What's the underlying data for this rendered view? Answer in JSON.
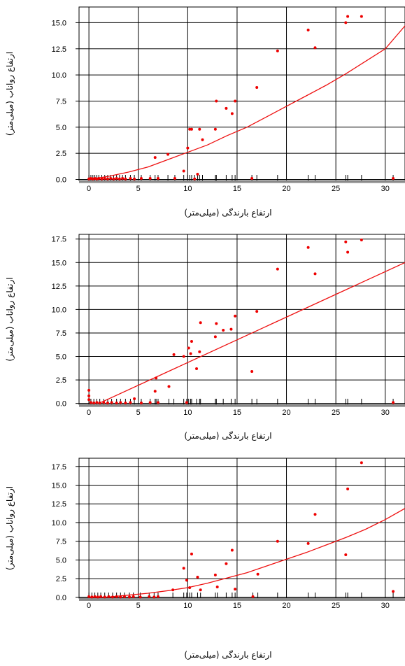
{
  "chart_data": [
    {
      "type": "scatter",
      "xlabel": "ارتفاع بارندگی (میلی‌متر)",
      "ylabel": "ارتفاع رواناب (میلی‌متر)",
      "xlim": [
        -1,
        32
      ],
      "ylim": [
        -0.1,
        16.5
      ],
      "xticks": [
        "0",
        "5",
        "10",
        "15",
        "20",
        "25",
        "30"
      ],
      "yticks": [
        "0.0",
        "2.5",
        "5.0",
        "7.5",
        "10.0",
        "12.5",
        "15.0"
      ],
      "ytick_values": [
        0,
        2.5,
        5,
        7.5,
        10,
        12.5,
        15
      ],
      "grid": true,
      "points": {
        "x": [
          0,
          0.2,
          0.4,
          0.6,
          0.8,
          1.0,
          1.3,
          1.6,
          1.9,
          2.2,
          2.5,
          2.8,
          3.1,
          3.4,
          3.7,
          4.2,
          4.6,
          5.3,
          6.2,
          6.7,
          7.0,
          8.0,
          8.7,
          9.6,
          10.0,
          10.2,
          10.4,
          10.7,
          11.0,
          11.2,
          11.5,
          12.8,
          12.9,
          13.9,
          14.5,
          14.8,
          17.0,
          19.1,
          22.2,
          22.9,
          26.0,
          26.2,
          27.6,
          16.5,
          30.8
        ],
        "y": [
          0.05,
          0.1,
          0.05,
          0.1,
          0.05,
          0.1,
          0.05,
          0.1,
          0.05,
          0.1,
          0.05,
          0.1,
          0.05,
          0.1,
          0.05,
          0.1,
          0.05,
          0.1,
          0.1,
          2.1,
          0.1,
          2.4,
          0.1,
          0.8,
          3.0,
          4.8,
          4.8,
          0.05,
          0.5,
          4.8,
          3.8,
          4.8,
          7.5,
          6.8,
          6.3,
          7.5,
          8.8,
          12.3,
          14.3,
          12.6,
          15.0,
          15.6,
          15.6,
          0.1,
          0.1
        ]
      },
      "curve": {
        "x": [
          0,
          2,
          4,
          6,
          8,
          10,
          12,
          14,
          16,
          18,
          20,
          22,
          24,
          26,
          28,
          30,
          32
        ],
        "y": [
          0,
          0.3,
          0.7,
          1.2,
          1.9,
          2.6,
          3.3,
          4.2,
          5.0,
          6.0,
          7.0,
          8.0,
          9.0,
          10.1,
          11.3,
          12.5,
          14.7
        ]
      },
      "rug": [
        0,
        0.2,
        0.4,
        0.6,
        0.8,
        1.0,
        1.3,
        1.6,
        1.9,
        2.2,
        2.5,
        2.8,
        3.1,
        3.4,
        3.7,
        4.2,
        4.6,
        5.3,
        6.2,
        6.7,
        7.0,
        8.0,
        8.7,
        9.6,
        10.0,
        10.2,
        10.4,
        10.7,
        11.0,
        11.2,
        11.5,
        12.8,
        12.9,
        13.9,
        14.5,
        14.8,
        16.5,
        17.0,
        19.1,
        22.2,
        22.9,
        26.0,
        26.2,
        27.6,
        30.8
      ]
    },
    {
      "type": "scatter",
      "xlabel": "ارتفاع بارندگی (میلی‌متر)",
      "ylabel": "ارتفاع رواناب (میلی‌متر)",
      "xlim": [
        -1,
        32
      ],
      "ylim": [
        -0.1,
        18
      ],
      "xticks": [
        "0",
        "5",
        "10",
        "15",
        "20",
        "25",
        "30"
      ],
      "yticks": [
        "0.0",
        "2.5",
        "5.0",
        "7.5",
        "10.0",
        "12.5",
        "15.0",
        "17.5"
      ],
      "ytick_values": [
        0,
        2.5,
        5,
        7.5,
        10,
        12.5,
        15,
        17.5
      ],
      "grid": true,
      "points": {
        "x": [
          0,
          0,
          0,
          0.2,
          0.5,
          0.8,
          1.1,
          1.5,
          1.9,
          2.3,
          2.8,
          3.2,
          3.7,
          4.2,
          4.6,
          5.3,
          6.2,
          6.7,
          6.8,
          7.0,
          8.1,
          8.6,
          9.6,
          9.9,
          10.1,
          10.3,
          10.4,
          10.9,
          11.2,
          11.3,
          12.8,
          12.9,
          13.6,
          14.4,
          14.8,
          16.5,
          17.0,
          19.1,
          22.2,
          22.9,
          26.0,
          26.2,
          27.6,
          30.8
        ],
        "y": [
          1.4,
          0.8,
          0.4,
          0.1,
          0.05,
          0.1,
          0.05,
          0.1,
          0.05,
          0.1,
          0.05,
          0.1,
          0.05,
          0.1,
          0.5,
          0.05,
          0.1,
          1.3,
          2.7,
          0.1,
          1.8,
          5.2,
          5.0,
          0.1,
          5.9,
          5.3,
          6.6,
          3.7,
          5.5,
          8.6,
          7.1,
          8.5,
          7.8,
          7.9,
          9.3,
          3.4,
          9.8,
          14.3,
          16.6,
          13.8,
          17.2,
          16.1,
          17.4,
          0.1
        ]
      },
      "curve": {
        "x": [
          1,
          32
        ],
        "y": [
          0,
          15.0
        ]
      },
      "rug": [
        0,
        0.2,
        0.5,
        0.8,
        1.1,
        1.5,
        1.9,
        2.3,
        2.8,
        3.2,
        3.7,
        4.2,
        4.6,
        5.3,
        6.2,
        6.7,
        6.8,
        7.0,
        8.1,
        8.6,
        9.6,
        9.9,
        10.1,
        10.3,
        10.4,
        10.9,
        11.2,
        11.3,
        12.8,
        12.9,
        13.6,
        14.4,
        14.8,
        16.5,
        17.0,
        19.1,
        22.2,
        22.9,
        26.0,
        26.2,
        27.6,
        30.8
      ]
    },
    {
      "type": "scatter",
      "xlabel": "ارتفاع بارندگی (میلی‌متر)",
      "ylabel": "ارتفاع رواناب (میلی‌متر)",
      "xlim": [
        -1,
        32
      ],
      "ylim": [
        -0.1,
        18.6
      ],
      "xticks": [
        "0",
        "5",
        "10",
        "15",
        "20",
        "25",
        "30"
      ],
      "yticks": [
        "0.0",
        "2.5",
        "5.0",
        "7.5",
        "10.0",
        "12.5",
        "15.0",
        "17.5"
      ],
      "ytick_values": [
        0,
        2.5,
        5,
        7.5,
        10,
        12.5,
        15,
        17.5
      ],
      "grid": true,
      "points": {
        "x": [
          0,
          0.3,
          0.6,
          0.9,
          1.2,
          1.6,
          2.0,
          2.4,
          2.8,
          3.2,
          3.6,
          4.1,
          4.5,
          5.2,
          6.1,
          6.6,
          7.0,
          8.5,
          9.6,
          9.9,
          10.2,
          10.4,
          11.0,
          11.3,
          12.8,
          13.0,
          13.9,
          14.5,
          14.8,
          16.6,
          17.1,
          19.1,
          22.2,
          22.9,
          26.0,
          26.2,
          27.6,
          30.8
        ],
        "y": [
          0.1,
          0.05,
          0.1,
          0.05,
          0.1,
          0.05,
          0.1,
          0.05,
          0.1,
          0.05,
          0.1,
          0.05,
          0.1,
          0.05,
          0.1,
          0.05,
          0.1,
          1.0,
          3.9,
          2.3,
          1.3,
          5.8,
          2.7,
          1.0,
          3.0,
          1.4,
          4.5,
          6.3,
          1.1,
          0.1,
          3.1,
          7.5,
          7.2,
          11.1,
          5.7,
          14.5,
          18.0,
          0.8
        ]
      },
      "curve": {
        "x": [
          0,
          2,
          4,
          6,
          8,
          10,
          12,
          14,
          16,
          18,
          20,
          22,
          24,
          26,
          28,
          30,
          32
        ],
        "y": [
          0,
          0.05,
          0.3,
          0.55,
          0.9,
          1.3,
          1.9,
          2.6,
          3.3,
          4.2,
          5.1,
          6.0,
          7.0,
          8.0,
          9.1,
          10.4,
          11.9
        ]
      },
      "rug": [
        0,
        0.3,
        0.6,
        0.9,
        1.2,
        1.6,
        2.0,
        2.4,
        2.8,
        3.2,
        3.6,
        4.1,
        4.5,
        5.2,
        6.1,
        6.6,
        7.0,
        8.5,
        9.6,
        9.9,
        10.2,
        10.4,
        11.0,
        11.3,
        12.8,
        13.0,
        13.9,
        14.5,
        14.8,
        16.6,
        17.1,
        19.1,
        22.2,
        22.9,
        26.0,
        26.2,
        27.6,
        30.8
      ]
    }
  ]
}
